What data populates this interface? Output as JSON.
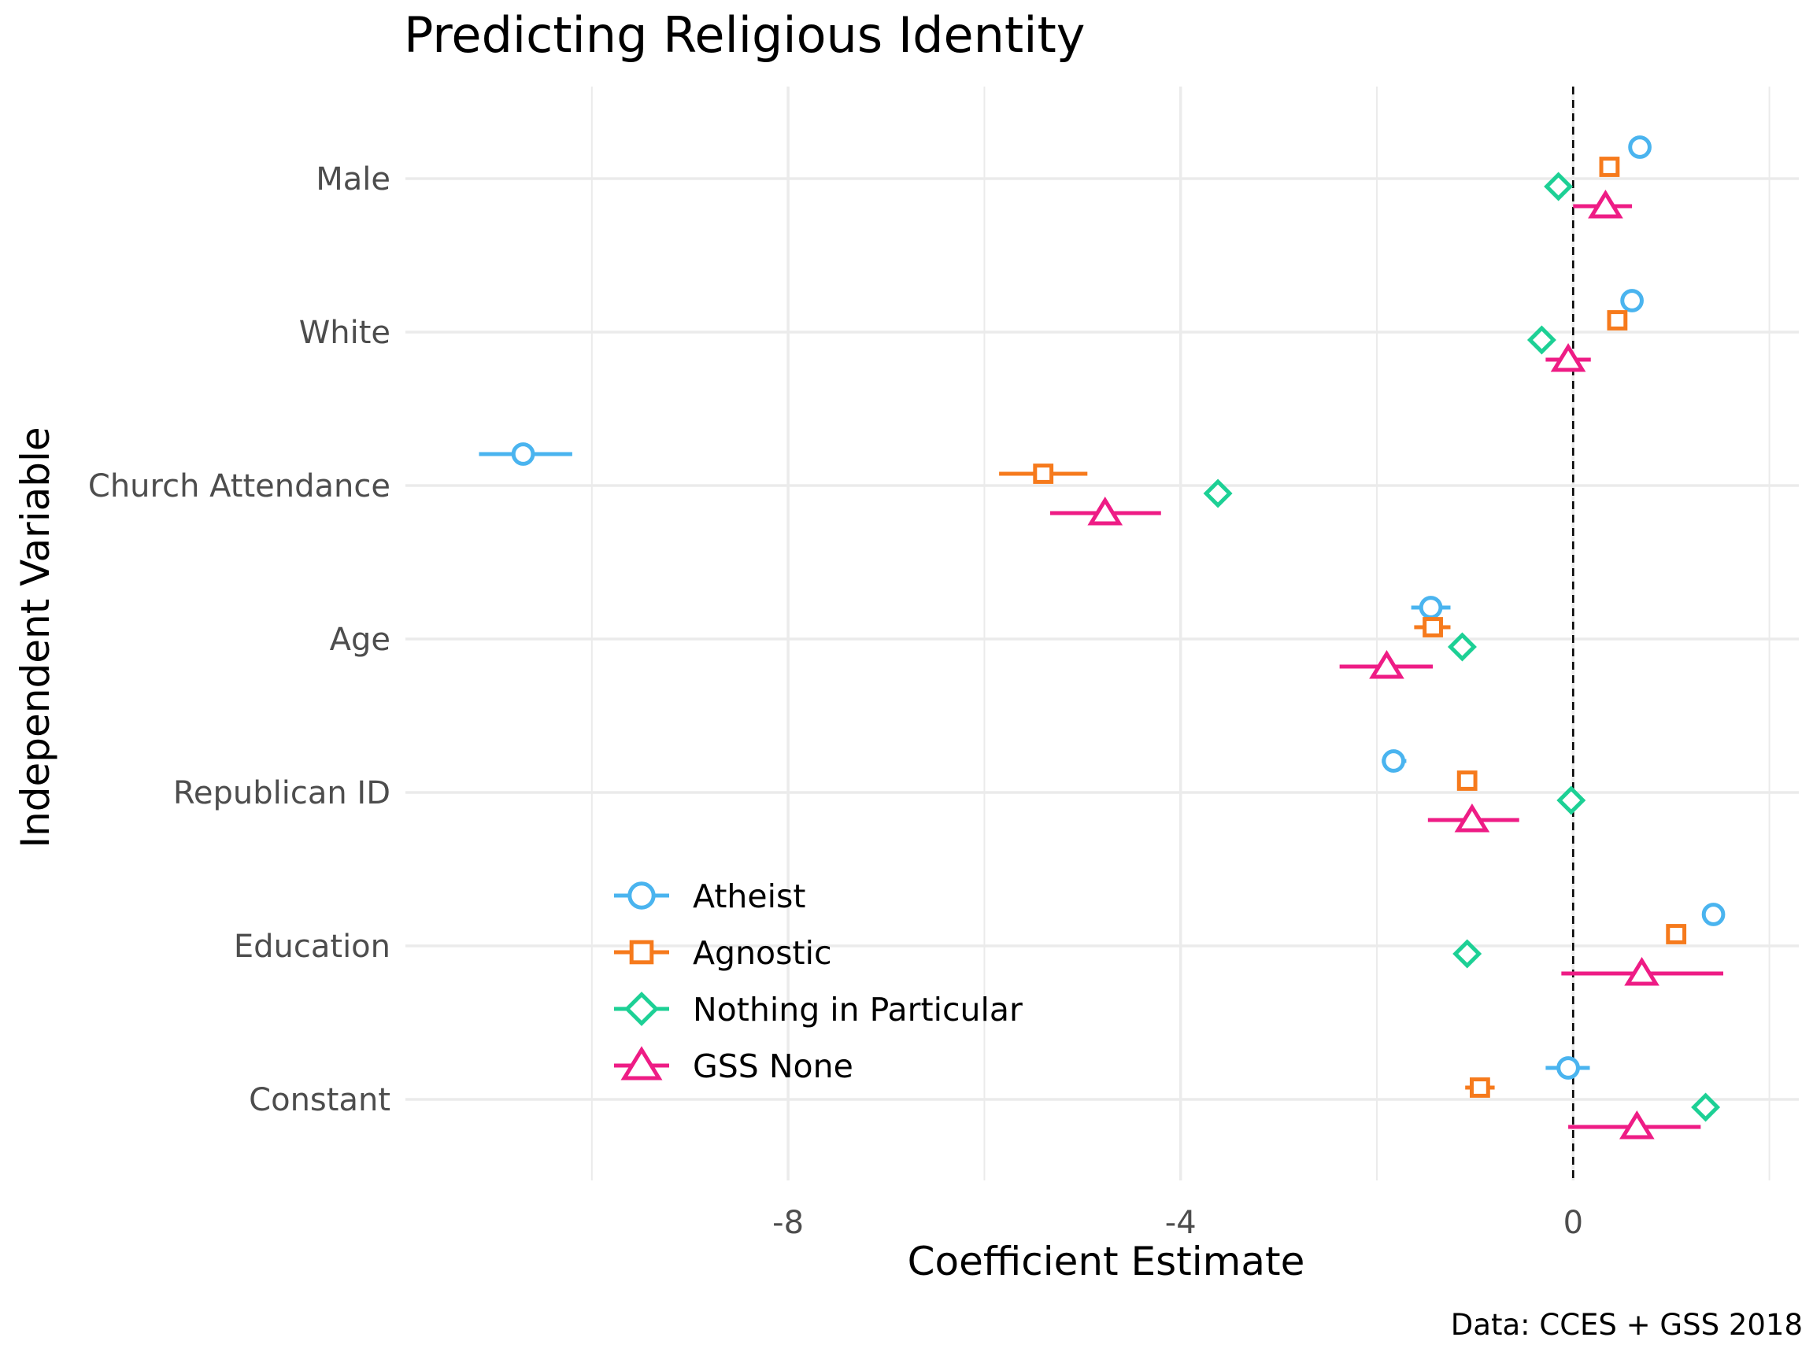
{
  "chart_data": {
    "type": "scatter",
    "title": "Predicting Religious Identity",
    "xlabel": "Coefficient Estimate",
    "ylabel": "Independent Variable",
    "caption": "Data: CCES + GSS 2018",
    "xlim": [
      -11.9,
      2.3
    ],
    "x_ticks": [
      -8,
      -4,
      0
    ],
    "x_tick_labels": [
      "-8",
      "-4",
      "0"
    ],
    "reference_line_x": 0,
    "grid": true,
    "legend_position": "bottom-left",
    "categories": [
      "Male",
      "White",
      "Church Attendance",
      "Age",
      "Republican ID",
      "Education",
      "Constant"
    ],
    "series": [
      {
        "name": "Atheist",
        "color": "#4ab4ef",
        "shape": "circle",
        "values": [
          0.68,
          0.6,
          -10.7,
          -1.45,
          -1.83,
          1.43,
          -0.05
        ],
        "ci_low": [
          0.62,
          0.55,
          -11.15,
          -1.65,
          -1.95,
          1.37,
          -0.28
        ],
        "ci_high": [
          0.74,
          0.65,
          -10.2,
          -1.25,
          -1.7,
          1.5,
          0.17
        ]
      },
      {
        "name": "Agnostic",
        "color": "#f67a1c",
        "shape": "square",
        "values": [
          0.37,
          0.45,
          -5.4,
          -1.43,
          -1.08,
          1.05,
          -0.95
        ],
        "ci_low": [
          0.32,
          0.4,
          -5.85,
          -1.62,
          -1.18,
          0.95,
          -1.1
        ],
        "ci_high": [
          0.43,
          0.5,
          -4.95,
          -1.25,
          -0.98,
          1.15,
          -0.8
        ]
      },
      {
        "name": "Nothing in Particular",
        "color": "#1dd095",
        "shape": "diamond",
        "values": [
          -0.15,
          -0.32,
          -3.62,
          -1.13,
          -0.02,
          -1.08,
          1.35
        ],
        "ci_low": [
          -0.2,
          -0.37,
          -3.7,
          -1.2,
          -0.08,
          -1.15,
          1.28
        ],
        "ci_high": [
          -0.1,
          -0.27,
          -3.55,
          -1.06,
          0.04,
          -1.01,
          1.42
        ]
      },
      {
        "name": "GSS None",
        "color": "#ee1c85",
        "shape": "triangle",
        "values": [
          0.33,
          -0.05,
          -4.77,
          -1.9,
          -1.03,
          0.7,
          0.65
        ],
        "ci_low": [
          0.0,
          -0.28,
          -5.33,
          -2.38,
          -1.48,
          -0.12,
          -0.05
        ],
        "ci_high": [
          0.6,
          0.18,
          -4.2,
          -1.43,
          -0.55,
          1.53,
          1.3
        ]
      }
    ]
  }
}
